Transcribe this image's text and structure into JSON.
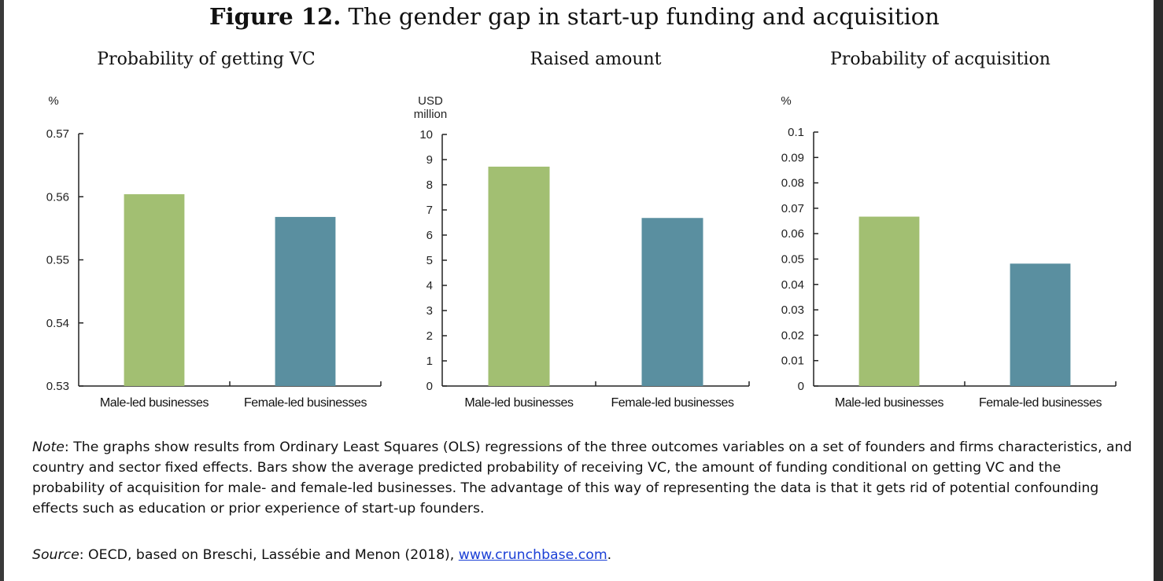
{
  "figure": {
    "label": "Figure 12.",
    "title": "The gender gap in start-up funding and acquisition"
  },
  "colors": {
    "male": "#a2bf72",
    "female": "#5a8fa0",
    "axis": "#222222"
  },
  "chart_data": [
    {
      "type": "bar",
      "title": "Probability of getting VC",
      "ylabel": "%",
      "categories": [
        "Male-led businesses",
        "Female-led businesses"
      ],
      "values": [
        0.5604,
        0.5568
      ],
      "ylim": [
        0.53,
        0.57
      ],
      "yticks": [
        "0.53",
        "0.54",
        "0.55",
        "0.56",
        "0.57"
      ],
      "grid": false
    },
    {
      "type": "bar",
      "title": "Raised amount",
      "ylabel": "USD million",
      "categories": [
        "Male-led businesses",
        "Female-led businesses"
      ],
      "values": [
        8.72,
        6.68
      ],
      "ylim": [
        0,
        10
      ],
      "yticks": [
        "0",
        "1",
        "2",
        "3",
        "4",
        "5",
        "6",
        "7",
        "8",
        "9",
        "10"
      ],
      "grid": false
    },
    {
      "type": "bar",
      "title": "Probability of acquisition",
      "ylabel": "%",
      "categories": [
        "Male-led businesses",
        "Female-led businesses"
      ],
      "values": [
        0.0667,
        0.0482
      ],
      "ylim": [
        0,
        0.1
      ],
      "yticks": [
        "0",
        "0.01",
        "0.02",
        "0.03",
        "0.04",
        "0.05",
        "0.06",
        "0.07",
        "0.08",
        "0.09",
        "0.1"
      ],
      "grid": false
    }
  ],
  "note": {
    "label": "Note",
    "text": ": The graphs show results from Ordinary Least Squares (OLS) regressions of the three outcomes variables on a set of founders and firms characteristics, and country and sector fixed effects. Bars show the average predicted probability of receiving VC, the amount of funding conditional on getting VC and the probability of acquisition for male- and female-led businesses. The advantage of this way of representing the data is that it gets rid of potential confounding effects such as education or prior experience of start-up founders."
  },
  "source": {
    "label": "Source",
    "text": ": OECD, based on Breschi, Lassébie and Menon (2018), ",
    "link": "www.crunchbase.com",
    "end": "."
  }
}
